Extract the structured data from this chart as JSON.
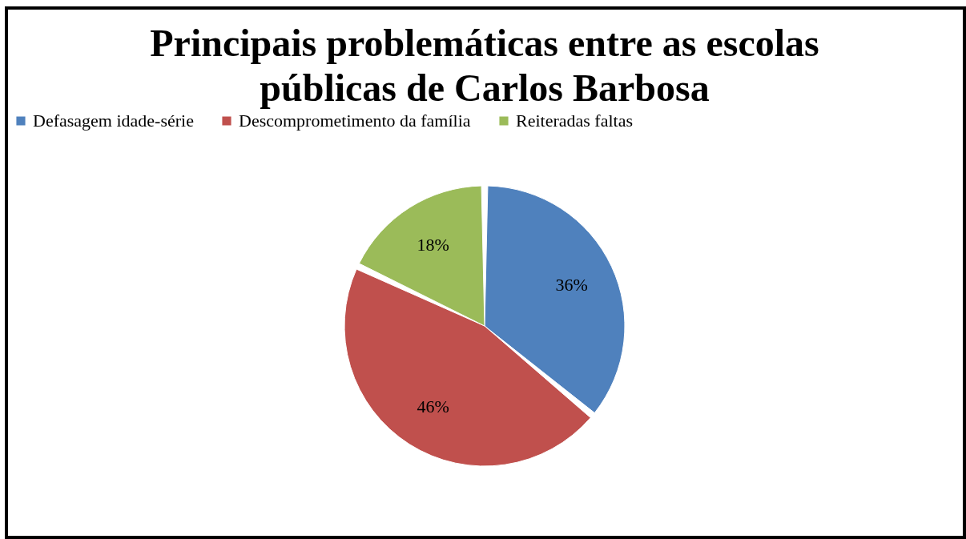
{
  "chart_data": {
    "type": "pie",
    "title": [
      "Principais problemáticas entre as escolas",
      "públicas de Carlos Barbosa"
    ],
    "categories": [
      "Defasagem idade-série",
      "Descomprometimento da família",
      "Reiteradas faltas"
    ],
    "values": [
      36,
      46,
      18
    ],
    "colors": [
      "#4f81bd",
      "#c0504d",
      "#9bbb59"
    ],
    "value_labels": [
      "36%",
      "46%",
      "18%"
    ],
    "legend": "top"
  }
}
